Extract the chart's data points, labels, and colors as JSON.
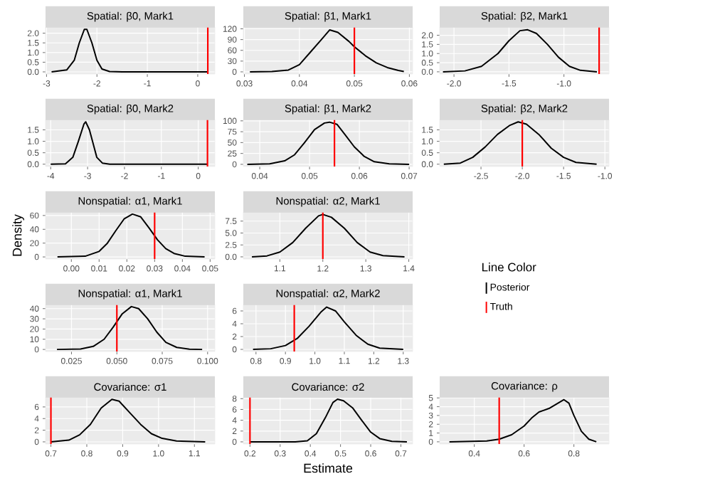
{
  "chart_data": [
    {
      "type": "line",
      "title": "Spatial: β0, Mark1",
      "xlim": [
        -3.02,
        0.34
      ],
      "ylim": [
        -0.11,
        2.32
      ],
      "xticks": [
        -3,
        -2,
        -1,
        0
      ],
      "yticks": [
        {
          "value": 0,
          "label": "0.0"
        },
        0.5,
        {
          "value": 1,
          "label": "1.0"
        },
        1.5,
        {
          "value": 2,
          "label": "2.0"
        }
      ],
      "grid": true,
      "series": [
        {
          "color": "#000000",
          "x": [
            -2.9,
            -2.6,
            -2.45,
            -2.35,
            -2.25,
            -2.2,
            -2.1,
            -2.0,
            -1.9,
            -1.75,
            -1.5,
            0.2
          ],
          "values": [
            0,
            0.1,
            0.6,
            1.5,
            2.2,
            2.2,
            1.5,
            0.6,
            0.15,
            0.02,
            0,
            0
          ]
        }
      ],
      "ref_lines": [
        {
          "axis": "x",
          "value": 0.2,
          "color": "#ff0000"
        }
      ]
    },
    {
      "type": "line",
      "title": "Spatial: β1, Mark1",
      "xlim": [
        0.0298,
        0.0606
      ],
      "ylim": [
        -6,
        125
      ],
      "xticks": [
        0.03,
        0.04,
        0.05,
        0.06
      ],
      "yticks": [
        0,
        30,
        60,
        90,
        120
      ],
      "grid": true,
      "series": [
        {
          "color": "#000000",
          "x": [
            0.031,
            0.035,
            0.038,
            0.04,
            0.042,
            0.044,
            0.0455,
            0.047,
            0.049,
            0.05,
            0.052,
            0.054,
            0.056,
            0.058,
            0.059
          ],
          "values": [
            0,
            1,
            5,
            20,
            55,
            90,
            117,
            110,
            85,
            70,
            45,
            25,
            12,
            4,
            1
          ]
        }
      ],
      "ref_lines": [
        {
          "axis": "x",
          "value": 0.05,
          "color": "#ff0000"
        }
      ]
    },
    {
      "type": "line",
      "title": "Spatial: β2, Mark1",
      "xlim": [
        -2.13,
        -0.59
      ],
      "ylim": [
        -0.12,
        2.45
      ],
      "xticks": [
        {
          "value": -2,
          "label": "-2.0"
        },
        -1.5,
        {
          "value": -1,
          "label": "-1.0"
        }
      ],
      "yticks": [
        {
          "value": 0,
          "label": "0.0"
        },
        0.5,
        {
          "value": 1,
          "label": "1.0"
        },
        1.5,
        {
          "value": 2,
          "label": "2.0"
        }
      ],
      "grid": true,
      "series": [
        {
          "color": "#000000",
          "x": [
            -2.1,
            -1.9,
            -1.75,
            -1.6,
            -1.5,
            -1.4,
            -1.33,
            -1.25,
            -1.15,
            -1.05,
            -0.95,
            -0.85,
            -0.7
          ],
          "values": [
            0,
            0.05,
            0.3,
            1.0,
            1.7,
            2.25,
            2.3,
            2.1,
            1.5,
            0.8,
            0.3,
            0.08,
            0
          ]
        }
      ],
      "ref_lines": [
        {
          "axis": "x",
          "value": -0.68,
          "color": "#ff0000"
        }
      ]
    },
    {
      "type": "line",
      "title": "Spatial: β0, Mark2",
      "xlim": [
        -4.14,
        0.45
      ],
      "ylim": [
        -0.1,
        1.95
      ],
      "xticks": [
        -4,
        -3,
        -2,
        -1,
        0
      ],
      "yticks": [
        {
          "value": 0,
          "label": "0.0"
        },
        0.5,
        {
          "value": 1,
          "label": "1.0"
        },
        1.5
      ],
      "grid": true,
      "series": [
        {
          "color": "#000000",
          "x": [
            -4,
            -3.6,
            -3.4,
            -3.25,
            -3.1,
            -3.05,
            -2.95,
            -2.85,
            -2.75,
            -2.6,
            -2.4,
            0.25
          ],
          "values": [
            0,
            0.02,
            0.3,
            1.0,
            1.75,
            1.85,
            1.5,
            0.9,
            0.3,
            0.05,
            0,
            0
          ]
        }
      ],
      "ref_lines": [
        {
          "axis": "x",
          "value": 0.25,
          "color": "#ff0000"
        }
      ]
    },
    {
      "type": "line",
      "title": "Spatial: β1, Mark2",
      "xlim": [
        0.0367,
        0.0707
      ],
      "ylim": [
        -5,
        103
      ],
      "xticks": [
        0.04,
        0.05,
        0.06,
        0.07
      ],
      "yticks": [
        0,
        25,
        50,
        75,
        100
      ],
      "grid": true,
      "series": [
        {
          "color": "#000000",
          "x": [
            0.0375,
            0.042,
            0.045,
            0.047,
            0.049,
            0.051,
            0.053,
            0.054,
            0.0555,
            0.057,
            0.059,
            0.061,
            0.063,
            0.066,
            0.07
          ],
          "values": [
            0,
            1,
            8,
            22,
            50,
            80,
            95,
            97,
            92,
            70,
            40,
            18,
            6,
            1,
            0
          ]
        }
      ],
      "ref_lines": [
        {
          "axis": "x",
          "value": 0.055,
          "color": "#ff0000"
        }
      ]
    },
    {
      "type": "line",
      "title": "Spatial: β2, Mark2",
      "xlim": [
        -3.0,
        -0.95
      ],
      "ylim": [
        -0.1,
        1.95
      ],
      "xticks": [
        -2.5,
        {
          "value": -2,
          "label": "-2.0"
        },
        -1.5,
        {
          "value": -1,
          "label": "-1.0"
        }
      ],
      "yticks": [
        {
          "value": 0,
          "label": "0.0"
        },
        0.5,
        {
          "value": 1,
          "label": "1.0"
        },
        1.5
      ],
      "grid": true,
      "series": [
        {
          "color": "#000000",
          "x": [
            -2.95,
            -2.75,
            -2.6,
            -2.45,
            -2.3,
            -2.15,
            -2.05,
            -1.95,
            -1.8,
            -1.65,
            -1.5,
            -1.35,
            -1.1
          ],
          "values": [
            0,
            0.05,
            0.3,
            0.75,
            1.3,
            1.7,
            1.85,
            1.75,
            1.3,
            0.7,
            0.3,
            0.08,
            0
          ]
        }
      ],
      "ref_lines": [
        {
          "axis": "x",
          "value": -2.0,
          "color": "#ff0000"
        }
      ]
    },
    {
      "type": "line",
      "title": "Nonspatial: α1, Mark1",
      "ylabel": "Density",
      "xlim": [
        -0.0093,
        0.0517
      ],
      "ylim": [
        -3,
        65
      ],
      "xticks": [
        {
          "value": 0,
          "label": "0.00"
        },
        0.01,
        0.02,
        0.03,
        0.04,
        0.05
      ],
      "yticks": [
        0,
        20,
        40,
        60
      ],
      "grid": true,
      "series": [
        {
          "color": "#000000",
          "x": [
            -0.005,
            0.005,
            0.01,
            0.013,
            0.016,
            0.019,
            0.022,
            0.025,
            0.028,
            0.031,
            0.034,
            0.037,
            0.041,
            0.048
          ],
          "values": [
            0,
            1,
            8,
            20,
            38,
            55,
            62,
            58,
            42,
            25,
            12,
            5,
            1,
            0
          ]
        }
      ],
      "ref_lines": [
        {
          "axis": "x",
          "value": 0.03,
          "color": "#ff0000"
        }
      ]
    },
    {
      "type": "line",
      "title": "Nonspatial: α2, Mark1",
      "xlim": [
        1.015,
        1.409
      ],
      "ylim": [
        -0.45,
        9.4
      ],
      "xticks": [
        1.1,
        1.2,
        1.3,
        1.4
      ],
      "yticks": [
        {
          "value": 0,
          "label": "0.0"
        },
        2.5,
        {
          "value": 5,
          "label": "5.0"
        },
        7.5
      ],
      "grid": true,
      "legend": "right",
      "legend_title": "Line Color",
      "series": [
        {
          "name": "Posterior",
          "color": "#000000",
          "x": [
            1.035,
            1.07,
            1.1,
            1.13,
            1.16,
            1.19,
            1.2,
            1.22,
            1.25,
            1.28,
            1.31,
            1.34,
            1.39
          ],
          "values": [
            0,
            0.2,
            1,
            3,
            6,
            8.6,
            8.9,
            8.3,
            6,
            3,
            1,
            0.25,
            0
          ]
        }
      ],
      "ref_lines": [
        {
          "axis": "x",
          "value": 1.2,
          "color": "#ff0000",
          "label": "Truth"
        }
      ]
    },
    {
      "type": "line",
      "title": "Nonspatial: α1, Mark1",
      "xlim": [
        0.0107,
        0.104
      ],
      "ylim": [
        -2,
        44
      ],
      "xticks": [
        0.025,
        {
          "value": 0.05,
          "label": "0.050"
        },
        0.075,
        {
          "value": 0.1,
          "label": "0.100"
        }
      ],
      "yticks": [
        0,
        10,
        20,
        30,
        40
      ],
      "grid": true,
      "series": [
        {
          "color": "#000000",
          "x": [
            0.017,
            0.03,
            0.037,
            0.043,
            0.048,
            0.053,
            0.058,
            0.062,
            0.067,
            0.072,
            0.077,
            0.083,
            0.09,
            0.097
          ],
          "values": [
            0,
            0.5,
            3,
            10,
            22,
            35,
            42,
            40,
            30,
            17,
            7,
            2,
            0.3,
            0
          ]
        }
      ],
      "ref_lines": [
        {
          "axis": "x",
          "value": 0.05,
          "color": "#ff0000"
        }
      ]
    },
    {
      "type": "line",
      "title": "Nonspatial: α2, Mark2",
      "xlim": [
        0.757,
        1.332
      ],
      "ylim": [
        -0.33,
        7
      ],
      "xticks": [
        0.8,
        0.9,
        {
          "value": 1,
          "label": "1.0"
        },
        1.1,
        1.2,
        1.3
      ],
      "yticks": [
        0,
        2,
        4,
        6
      ],
      "grid": true,
      "series": [
        {
          "color": "#000000",
          "x": [
            0.79,
            0.85,
            0.9,
            0.94,
            0.98,
            1.02,
            1.04,
            1.07,
            1.1,
            1.14,
            1.18,
            1.22,
            1.3
          ],
          "values": [
            0,
            0.1,
            0.6,
            1.7,
            3.6,
            5.8,
            6.6,
            6,
            4.3,
            2.2,
            0.8,
            0.2,
            0
          ]
        }
      ],
      "ref_lines": [
        {
          "axis": "x",
          "value": 0.93,
          "color": "#ff0000"
        }
      ]
    },
    {
      "type": "line",
      "title": "Covariance: σ1",
      "xlim": [
        0.685,
        1.157
      ],
      "ylim": [
        -0.37,
        7.7
      ],
      "xticks": [
        0.7,
        0.8,
        0.9,
        {
          "value": 1,
          "label": "1.0"
        },
        1.1
      ],
      "yticks": [
        0,
        2,
        4,
        6
      ],
      "grid": true,
      "series": [
        {
          "color": "#000000",
          "x": [
            0.7,
            0.75,
            0.78,
            0.81,
            0.84,
            0.87,
            0.89,
            0.92,
            0.95,
            0.98,
            1.01,
            1.05,
            1.13
          ],
          "values": [
            0,
            0.3,
            1.2,
            3,
            5.8,
            7.3,
            7,
            5,
            3,
            1.4,
            0.6,
            0.15,
            0
          ]
        }
      ],
      "ref_lines": [
        {
          "axis": "x",
          "value": 0.7,
          "color": "#ff0000"
        }
      ]
    },
    {
      "type": "line",
      "title": "Covariance: σ2",
      "xlabel": "Estimate",
      "xlim": [
        0.178,
        0.739
      ],
      "ylim": [
        -0.4,
        8.3
      ],
      "xticks": [
        0.2,
        0.3,
        0.4,
        0.5,
        0.6,
        0.7
      ],
      "yticks": [
        0,
        2,
        4,
        6,
        8
      ],
      "grid": true,
      "series": [
        {
          "color": "#000000",
          "x": [
            0.2,
            0.35,
            0.39,
            0.42,
            0.45,
            0.475,
            0.49,
            0.51,
            0.54,
            0.57,
            0.6,
            0.63,
            0.67,
            0.72
          ],
          "values": [
            0,
            0,
            0.2,
            1.5,
            4.5,
            7.3,
            7.9,
            7.6,
            6.3,
            4,
            1.8,
            0.6,
            0.1,
            0
          ]
        }
      ],
      "ref_lines": [
        {
          "axis": "x",
          "value": 0.2,
          "color": "#ff0000"
        }
      ]
    },
    {
      "type": "line",
      "title": "Covariance: ρ",
      "xlim": [
        0.261,
        0.941
      ],
      "ylim": [
        -0.25,
        5.1
      ],
      "xticks": [
        0.4,
        0.6,
        0.8
      ],
      "yticks": [
        0,
        1,
        2,
        3,
        4,
        5
      ],
      "grid": true,
      "series": [
        {
          "color": "#000000",
          "x": [
            0.3,
            0.45,
            0.5,
            0.55,
            0.6,
            0.63,
            0.66,
            0.7,
            0.73,
            0.76,
            0.78,
            0.8,
            0.83,
            0.86,
            0.89
          ],
          "values": [
            0,
            0.1,
            0.3,
            0.8,
            1.8,
            2.7,
            3.4,
            3.8,
            4.3,
            4.8,
            4.4,
            3,
            1.2,
            0.3,
            0
          ]
        }
      ],
      "ref_lines": [
        {
          "axis": "x",
          "value": 0.5,
          "color": "#ff0000"
        }
      ]
    }
  ]
}
